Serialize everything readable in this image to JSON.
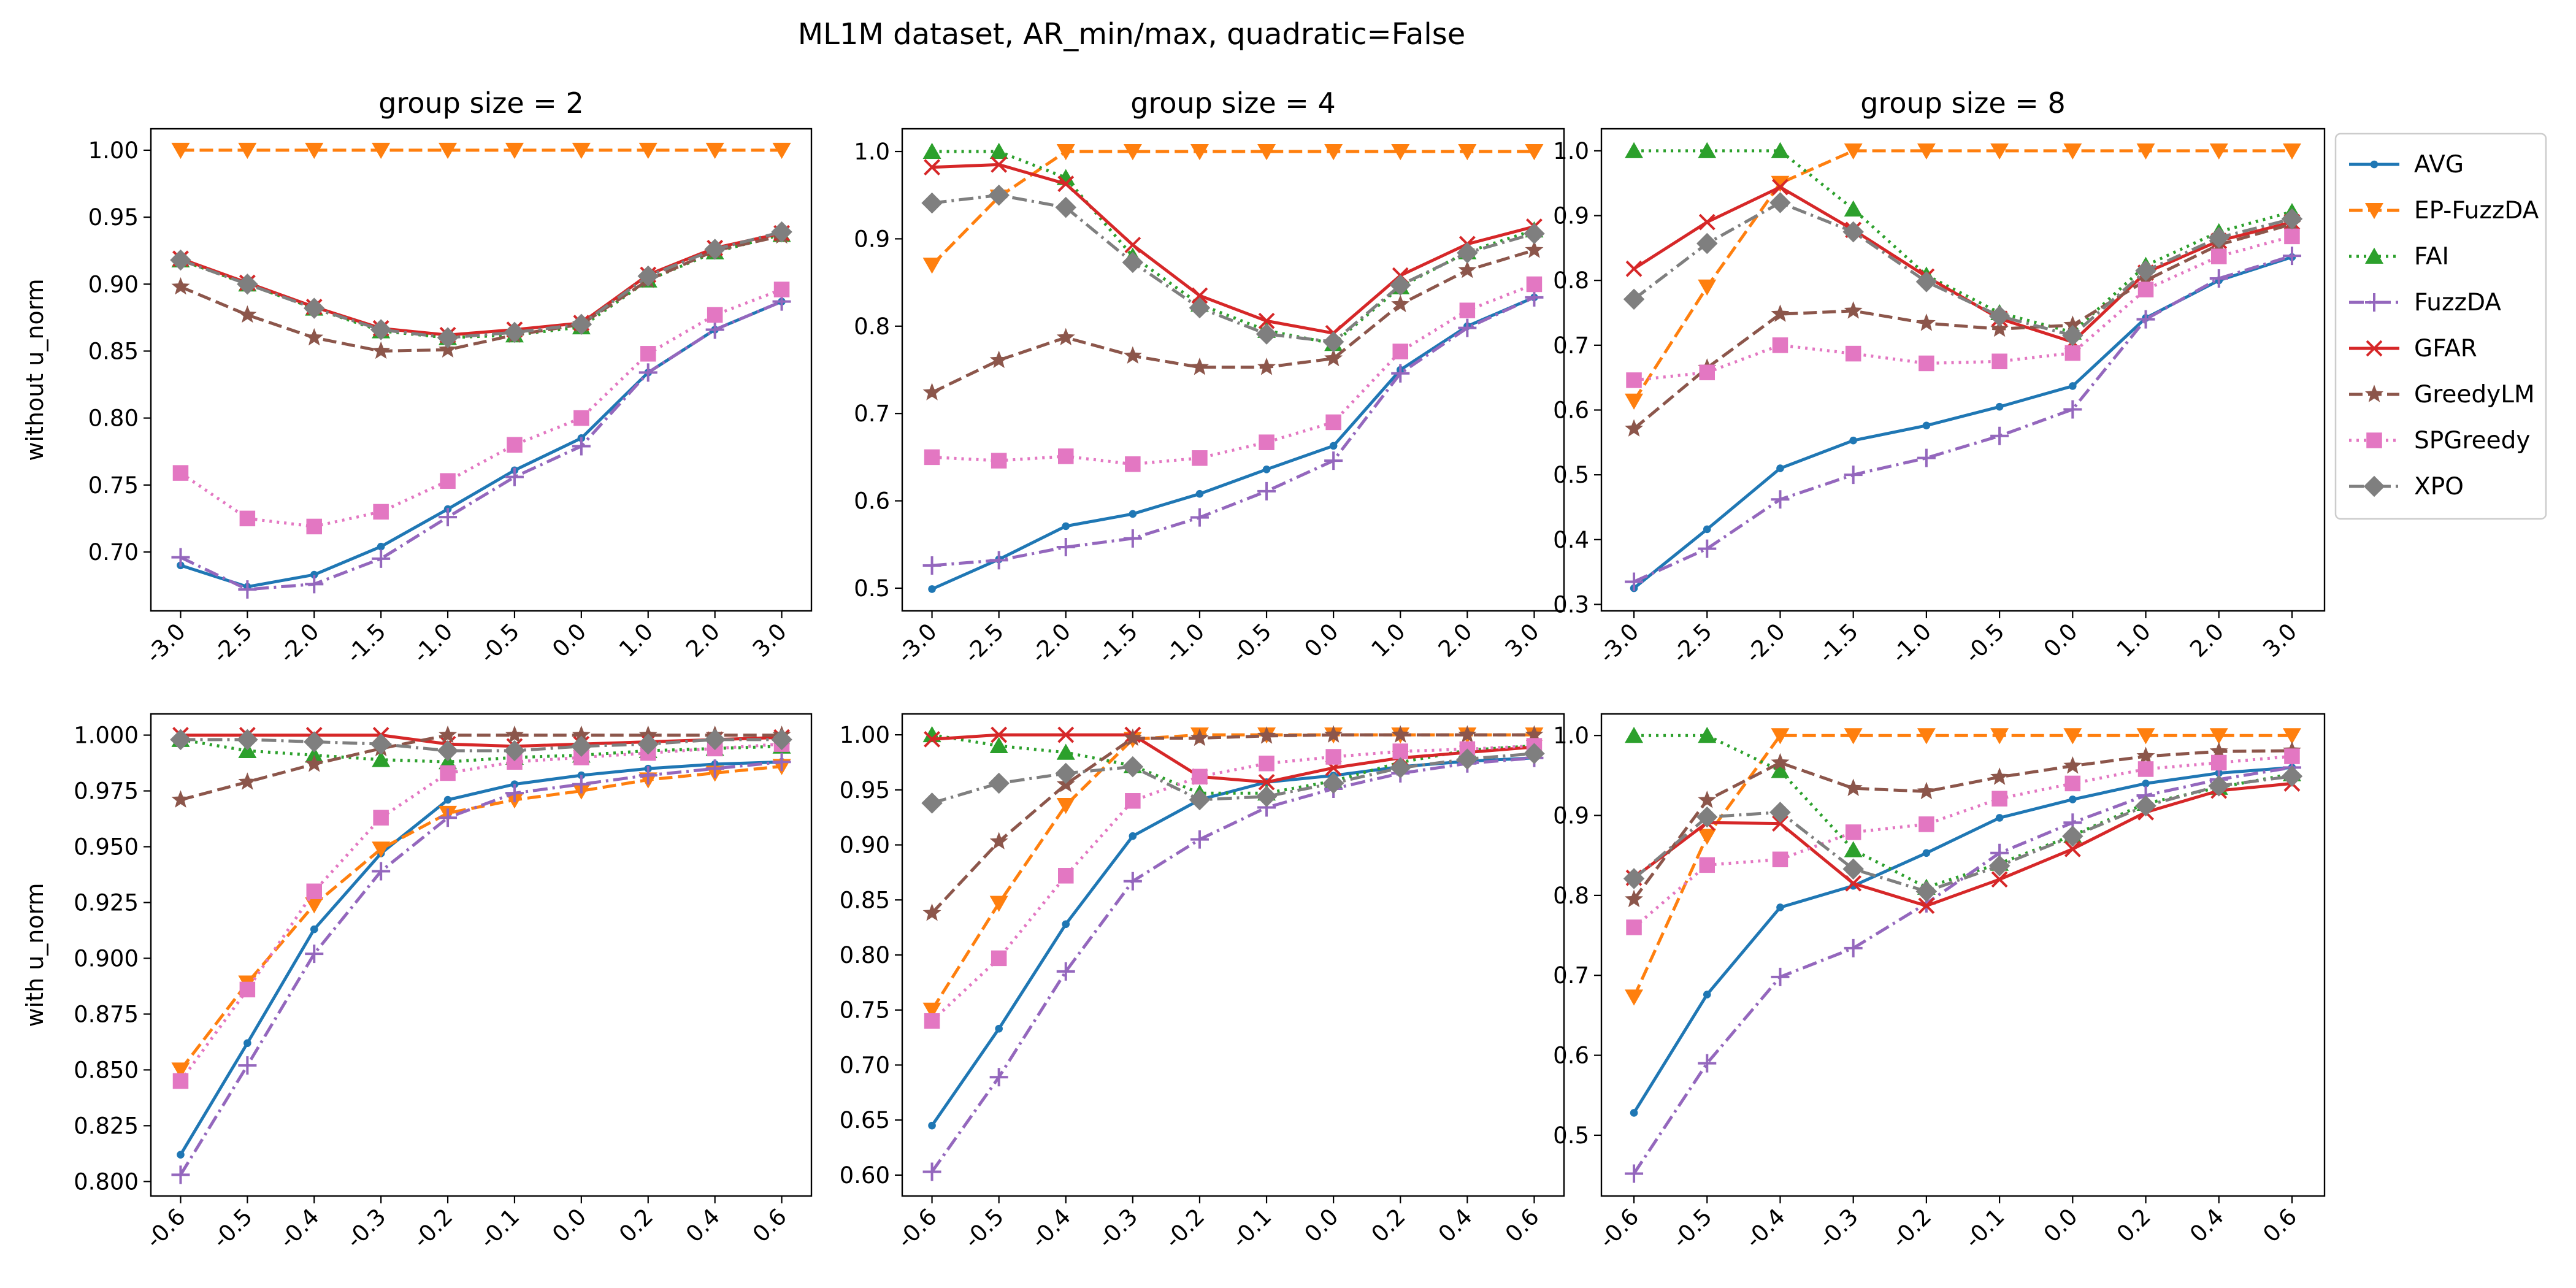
{
  "suptitle": "ML1M dataset, AR_min/max, quadratic=False",
  "legend_placement": "right",
  "legend": [
    {
      "name": "AVG",
      "color": "#1f77b4",
      "dash": "solid",
      "marker": "point"
    },
    {
      "name": "EP-FuzzDA",
      "color": "#ff7f0e",
      "dash": "dashed",
      "marker": "triangle-down"
    },
    {
      "name": "FAI",
      "color": "#2ca02c",
      "dash": "dotted",
      "marker": "triangle-up"
    },
    {
      "name": "FuzzDA",
      "color": "#9467bd",
      "dash": "dashdot",
      "marker": "plus"
    },
    {
      "name": "GFAR",
      "color": "#d62728",
      "dash": "solid",
      "marker": "x"
    },
    {
      "name": "GreedyLM",
      "color": "#8c564b",
      "dash": "dashed",
      "marker": "star"
    },
    {
      "name": "SPGreedy",
      "color": "#e377c2",
      "dash": "dotted",
      "marker": "square"
    },
    {
      "name": "XPO",
      "color": "#7f7f7f",
      "dash": "dashdot",
      "marker": "diamond"
    }
  ],
  "chart_data": [
    {
      "type": "line",
      "row": 0,
      "col": 0,
      "title": "group size = 2",
      "ylabel": "without u_norm",
      "categories": [
        "-3.0",
        "-2.5",
        "-2.0",
        "-1.5",
        "-1.0",
        "-0.5",
        "0.0",
        "1.0",
        "2.0",
        "3.0"
      ],
      "ylim": [
        0.656,
        1.016
      ],
      "yticks": [
        0.7,
        0.75,
        0.8,
        0.85,
        0.9,
        0.95,
        1.0
      ],
      "ytick_labels": [
        "0.70",
        "0.75",
        "0.80",
        "0.85",
        "0.90",
        "0.95",
        "1.00"
      ],
      "series": [
        {
          "name": "AVG",
          "values": [
            0.69,
            0.674,
            0.683,
            0.704,
            0.732,
            0.761,
            0.785,
            0.834,
            0.866,
            0.887
          ]
        },
        {
          "name": "EP-FuzzDA",
          "values": [
            1.0,
            1.0,
            1.0,
            1.0,
            1.0,
            1.0,
            1.0,
            1.0,
            1.0,
            1.0
          ]
        },
        {
          "name": "FAI",
          "values": [
            0.918,
            0.9,
            0.882,
            0.865,
            0.86,
            0.862,
            0.868,
            0.903,
            0.924,
            0.937
          ]
        },
        {
          "name": "FuzzDA",
          "values": [
            0.696,
            0.672,
            0.676,
            0.695,
            0.726,
            0.756,
            0.779,
            0.834,
            0.866,
            0.887
          ]
        },
        {
          "name": "GFAR",
          "values": [
            0.919,
            0.901,
            0.883,
            0.867,
            0.862,
            0.866,
            0.871,
            0.907,
            0.927,
            0.938
          ]
        },
        {
          "name": "GreedyLM",
          "values": [
            0.898,
            0.877,
            0.86,
            0.85,
            0.851,
            0.862,
            0.87,
            0.903,
            0.925,
            0.936
          ]
        },
        {
          "name": "SPGreedy",
          "values": [
            0.759,
            0.725,
            0.719,
            0.73,
            0.753,
            0.78,
            0.8,
            0.848,
            0.877,
            0.896
          ]
        },
        {
          "name": "XPO",
          "values": [
            0.918,
            0.9,
            0.882,
            0.866,
            0.86,
            0.864,
            0.87,
            0.906,
            0.926,
            0.939
          ]
        }
      ]
    },
    {
      "type": "line",
      "row": 0,
      "col": 1,
      "title": "group size = 4",
      "ylabel": "",
      "categories": [
        "-3.0",
        "-2.5",
        "-2.0",
        "-1.5",
        "-1.0",
        "-0.5",
        "0.0",
        "1.0",
        "2.0",
        "3.0"
      ],
      "ylim": [
        0.474,
        1.026
      ],
      "yticks": [
        0.5,
        0.6,
        0.7,
        0.8,
        0.9,
        1.0
      ],
      "ytick_labels": [
        "0.5",
        "0.6",
        "0.7",
        "0.8",
        "0.9",
        "1.0"
      ],
      "series": [
        {
          "name": "AVG",
          "values": [
            0.499,
            0.533,
            0.571,
            0.585,
            0.608,
            0.636,
            0.663,
            0.75,
            0.8,
            0.833
          ]
        },
        {
          "name": "EP-FuzzDA",
          "values": [
            0.87,
            0.948,
            1.0,
            1.0,
            1.0,
            1.0,
            1.0,
            1.0,
            1.0,
            1.0
          ]
        },
        {
          "name": "FAI",
          "values": [
            1.0,
            1.0,
            0.97,
            0.88,
            0.825,
            0.795,
            0.78,
            0.845,
            0.885,
            0.91
          ]
        },
        {
          "name": "FuzzDA",
          "values": [
            0.526,
            0.532,
            0.547,
            0.557,
            0.581,
            0.611,
            0.646,
            0.746,
            0.798,
            0.833
          ]
        },
        {
          "name": "GFAR",
          "values": [
            0.982,
            0.985,
            0.963,
            0.893,
            0.835,
            0.806,
            0.792,
            0.858,
            0.894,
            0.914
          ]
        },
        {
          "name": "GreedyLM",
          "values": [
            0.724,
            0.761,
            0.787,
            0.766,
            0.753,
            0.753,
            0.763,
            0.825,
            0.864,
            0.887
          ]
        },
        {
          "name": "SPGreedy",
          "values": [
            0.65,
            0.646,
            0.651,
            0.642,
            0.649,
            0.667,
            0.69,
            0.771,
            0.818,
            0.848
          ]
        },
        {
          "name": "XPO",
          "values": [
            0.941,
            0.95,
            0.936,
            0.873,
            0.821,
            0.791,
            0.782,
            0.847,
            0.884,
            0.906
          ]
        }
      ]
    },
    {
      "type": "line",
      "row": 0,
      "col": 2,
      "title": "group size = 8",
      "ylabel": "",
      "categories": [
        "-3.0",
        "-2.5",
        "-2.0",
        "-1.5",
        "-1.0",
        "-0.5",
        "0.0",
        "1.0",
        "2.0",
        "3.0"
      ],
      "ylim": [
        0.29,
        1.034
      ],
      "yticks": [
        0.3,
        0.4,
        0.5,
        0.6,
        0.7,
        0.8,
        0.9,
        1.0
      ],
      "ytick_labels": [
        "0.3",
        "0.4",
        "0.5",
        "0.6",
        "0.7",
        "0.8",
        "0.9",
        "1.0"
      ],
      "series": [
        {
          "name": "AVG",
          "values": [
            0.325,
            0.416,
            0.51,
            0.553,
            0.576,
            0.605,
            0.637,
            0.742,
            0.8,
            0.836
          ]
        },
        {
          "name": "EP-FuzzDA",
          "values": [
            0.614,
            0.79,
            0.95,
            1.0,
            1.0,
            1.0,
            1.0,
            1.0,
            1.0,
            1.0
          ]
        },
        {
          "name": "FAI",
          "values": [
            1.0,
            1.0,
            1.0,
            0.91,
            0.808,
            0.75,
            0.72,
            0.823,
            0.875,
            0.906
          ]
        },
        {
          "name": "FuzzDA",
          "values": [
            0.335,
            0.386,
            0.462,
            0.5,
            0.526,
            0.56,
            0.601,
            0.74,
            0.803,
            0.838
          ]
        },
        {
          "name": "GFAR",
          "values": [
            0.818,
            0.89,
            0.944,
            0.878,
            0.806,
            0.741,
            0.705,
            0.812,
            0.861,
            0.89
          ]
        },
        {
          "name": "GreedyLM",
          "values": [
            0.571,
            0.665,
            0.748,
            0.753,
            0.734,
            0.725,
            0.731,
            0.8,
            0.855,
            0.887
          ]
        },
        {
          "name": "SPGreedy",
          "values": [
            0.646,
            0.658,
            0.7,
            0.687,
            0.672,
            0.675,
            0.688,
            0.786,
            0.837,
            0.868
          ]
        },
        {
          "name": "XPO",
          "values": [
            0.771,
            0.857,
            0.92,
            0.875,
            0.798,
            0.745,
            0.715,
            0.815,
            0.866,
            0.895
          ]
        }
      ]
    },
    {
      "type": "line",
      "row": 1,
      "col": 0,
      "title": "",
      "ylabel": "with u_norm",
      "categories": [
        "-0.6",
        "-0.5",
        "-0.4",
        "-0.3",
        "-0.2",
        "-0.1",
        "0.0",
        "0.2",
        "0.4",
        "0.6"
      ],
      "ylim": [
        0.7935,
        1.0095
      ],
      "yticks": [
        0.8,
        0.825,
        0.85,
        0.875,
        0.9,
        0.925,
        0.95,
        0.975,
        1.0
      ],
      "ytick_labels": [
        "0.800",
        "0.825",
        "0.850",
        "0.875",
        "0.900",
        "0.925",
        "0.950",
        "0.975",
        "1.000"
      ],
      "series": [
        {
          "name": "AVG",
          "values": [
            0.812,
            0.862,
            0.913,
            0.947,
            0.971,
            0.978,
            0.982,
            0.985,
            0.987,
            0.988
          ]
        },
        {
          "name": "EP-FuzzDA",
          "values": [
            0.85,
            0.889,
            0.924,
            0.949,
            0.965,
            0.971,
            0.975,
            0.98,
            0.983,
            0.986
          ]
        },
        {
          "name": "FAI",
          "values": [
            0.998,
            0.993,
            0.991,
            0.989,
            0.988,
            0.99,
            0.991,
            0.993,
            0.994,
            0.995
          ]
        },
        {
          "name": "FuzzDA",
          "values": [
            0.803,
            0.852,
            0.902,
            0.939,
            0.963,
            0.974,
            0.978,
            0.982,
            0.985,
            0.988
          ]
        },
        {
          "name": "GFAR",
          "values": [
            1.0,
            1.0,
            1.0,
            1.0,
            0.996,
            0.995,
            0.996,
            0.997,
            0.998,
            0.999
          ]
        },
        {
          "name": "GreedyLM",
          "values": [
            0.971,
            0.979,
            0.987,
            0.994,
            1.0,
            1.0,
            1.0,
            1.0,
            1.0,
            1.0
          ]
        },
        {
          "name": "SPGreedy",
          "values": [
            0.845,
            0.886,
            0.93,
            0.963,
            0.983,
            0.988,
            0.99,
            0.992,
            0.994,
            0.996
          ]
        },
        {
          "name": "XPO",
          "values": [
            0.998,
            0.998,
            0.997,
            0.996,
            0.993,
            0.993,
            0.995,
            0.996,
            0.998,
            0.998
          ]
        }
      ]
    },
    {
      "type": "line",
      "row": 1,
      "col": 1,
      "title": "",
      "ylabel": "",
      "categories": [
        "-0.6",
        "-0.5",
        "-0.4",
        "-0.3",
        "-0.2",
        "-0.1",
        "0.0",
        "0.2",
        "0.4",
        "0.6"
      ],
      "ylim": [
        0.581,
        1.019
      ],
      "yticks": [
        0.6,
        0.65,
        0.7,
        0.75,
        0.8,
        0.85,
        0.9,
        0.95,
        1.0
      ],
      "ytick_labels": [
        "0.60",
        "0.65",
        "0.70",
        "0.75",
        "0.80",
        "0.85",
        "0.90",
        "0.95",
        "1.00"
      ],
      "series": [
        {
          "name": "AVG",
          "values": [
            0.645,
            0.733,
            0.828,
            0.908,
            0.941,
            0.957,
            0.963,
            0.971,
            0.976,
            0.979
          ]
        },
        {
          "name": "EP-FuzzDA",
          "values": [
            0.75,
            0.847,
            0.936,
            0.996,
            1.0,
            1.0,
            1.0,
            1.0,
            1.0,
            1.0
          ]
        },
        {
          "name": "FAI",
          "values": [
            1.0,
            0.99,
            0.984,
            0.972,
            0.947,
            0.947,
            0.958,
            0.975,
            0.986,
            0.99
          ]
        },
        {
          "name": "FuzzDA",
          "values": [
            0.603,
            0.689,
            0.785,
            0.867,
            0.905,
            0.934,
            0.951,
            0.965,
            0.974,
            0.979
          ]
        },
        {
          "name": "GFAR",
          "values": [
            0.996,
            1.0,
            1.0,
            1.0,
            0.962,
            0.957,
            0.97,
            0.979,
            0.984,
            0.989
          ]
        },
        {
          "name": "GreedyLM",
          "values": [
            0.838,
            0.903,
            0.955,
            0.997,
            0.997,
            0.999,
            1.0,
            1.0,
            1.0,
            1.0
          ]
        },
        {
          "name": "SPGreedy",
          "values": [
            0.74,
            0.797,
            0.872,
            0.94,
            0.962,
            0.974,
            0.98,
            0.985,
            0.987,
            0.99
          ]
        },
        {
          "name": "XPO",
          "values": [
            0.938,
            0.956,
            0.965,
            0.971,
            0.941,
            0.944,
            0.956,
            0.97,
            0.978,
            0.983
          ]
        }
      ]
    },
    {
      "type": "line",
      "row": 1,
      "col": 2,
      "title": "",
      "ylabel": "",
      "categories": [
        "-0.6",
        "-0.5",
        "-0.4",
        "-0.3",
        "-0.2",
        "-0.1",
        "0.0",
        "0.2",
        "0.4",
        "0.6"
      ],
      "ylim": [
        0.424,
        1.027
      ],
      "yticks": [
        0.5,
        0.6,
        0.7,
        0.8,
        0.9,
        1.0
      ],
      "ytick_labels": [
        "0.5",
        "0.6",
        "0.7",
        "0.8",
        "0.9",
        "1.0"
      ],
      "series": [
        {
          "name": "AVG",
          "values": [
            0.528,
            0.676,
            0.785,
            0.812,
            0.853,
            0.897,
            0.92,
            0.94,
            0.953,
            0.96
          ]
        },
        {
          "name": "EP-FuzzDA",
          "values": [
            0.673,
            0.874,
            1.0,
            1.0,
            1.0,
            1.0,
            1.0,
            1.0,
            1.0,
            1.0
          ]
        },
        {
          "name": "FAI",
          "values": [
            1.0,
            1.0,
            0.956,
            0.857,
            0.81,
            0.84,
            0.875,
            0.915,
            0.935,
            0.952
          ]
        },
        {
          "name": "FuzzDA",
          "values": [
            0.452,
            0.59,
            0.698,
            0.734,
            0.79,
            0.853,
            0.891,
            0.925,
            0.945,
            0.96
          ]
        },
        {
          "name": "GFAR",
          "values": [
            0.822,
            0.891,
            0.89,
            0.815,
            0.787,
            0.82,
            0.858,
            0.904,
            0.931,
            0.94
          ]
        },
        {
          "name": "GreedyLM",
          "values": [
            0.795,
            0.919,
            0.966,
            0.934,
            0.93,
            0.948,
            0.962,
            0.974,
            0.98,
            0.981
          ]
        },
        {
          "name": "SPGreedy",
          "values": [
            0.76,
            0.838,
            0.845,
            0.879,
            0.889,
            0.921,
            0.94,
            0.958,
            0.966,
            0.974
          ]
        },
        {
          "name": "XPO",
          "values": [
            0.821,
            0.898,
            0.904,
            0.833,
            0.805,
            0.837,
            0.874,
            0.912,
            0.937,
            0.949
          ]
        }
      ]
    }
  ]
}
